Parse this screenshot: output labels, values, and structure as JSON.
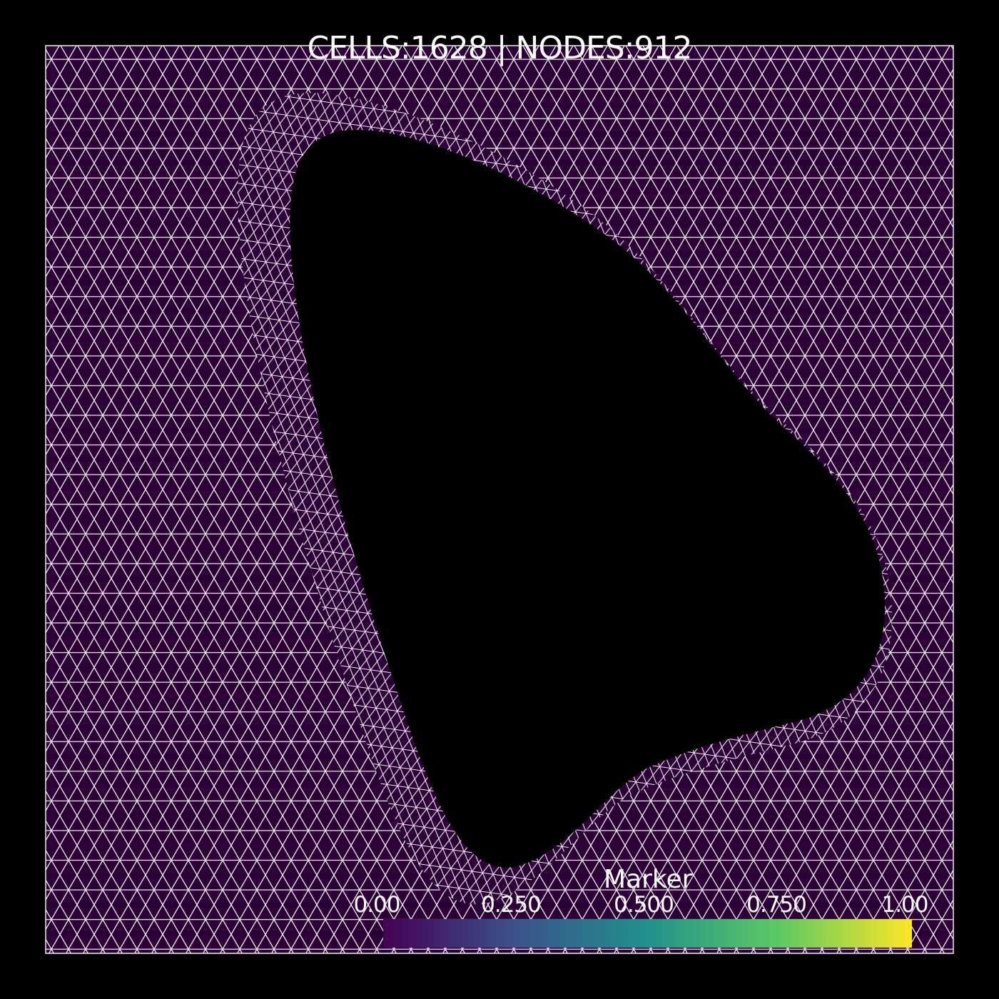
{
  "header": {
    "title": "CELLS:1628  | NODES:912"
  },
  "colorbar": {
    "title": "Marker",
    "ticks": [
      "0.00",
      "0.250",
      "0.500",
      "0.750",
      "1.00"
    ],
    "stops": [
      "#440154",
      "#3b528b",
      "#21918c",
      "#5ec962",
      "#fde725"
    ]
  },
  "colors": {
    "background": "#000000",
    "mesh_fill": "#2c0036",
    "mesh_edge": "#f2eaf4",
    "hole": "#000000"
  }
}
